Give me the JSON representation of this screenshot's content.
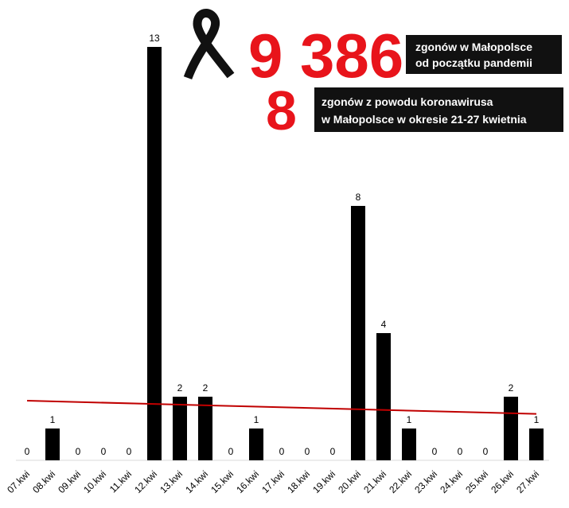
{
  "chart_data": {
    "type": "bar",
    "categories": [
      "07.kwi",
      "08.kwi",
      "09.kwi",
      "10.kwi",
      "11.kwi",
      "12.kwi",
      "13.kwi",
      "14.kwi",
      "15.kwi",
      "16.kwi",
      "17.kwi",
      "18.kwi",
      "19.kwi",
      "20.kwi",
      "21.kwi",
      "22.kwi",
      "23.kwi",
      "24.kwi",
      "25.kwi",
      "26.kwi",
      "27.kwi"
    ],
    "values": [
      0,
      1,
      0,
      0,
      0,
      13,
      2,
      2,
      0,
      1,
      0,
      0,
      0,
      8,
      4,
      1,
      0,
      0,
      0,
      2,
      1
    ],
    "color": "#000000",
    "trendline_color": "#c00000",
    "total_deaths": "9 386",
    "total_caption": [
      "zgonów w Małopolsce",
      "od początku pandemii"
    ],
    "week_deaths": "8",
    "week_caption": [
      "zgonów z powodu koronawirusa",
      "w Małopolsce w okresie 21-27 kwietnia"
    ]
  }
}
